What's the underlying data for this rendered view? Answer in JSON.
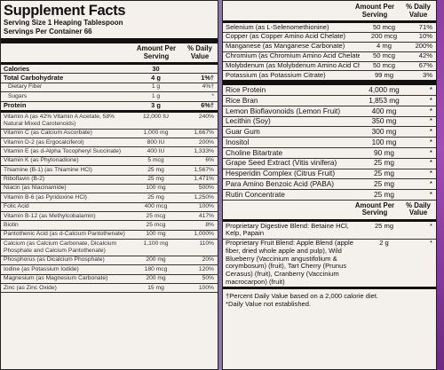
{
  "title": "Supplement Facts",
  "serving_size": "Serving Size 1 Heaping Tablespoon",
  "servings_per_container": "Servings Per Container 66",
  "header": {
    "amount": "Amount Per Serving",
    "dv": "% Daily Value"
  },
  "left_rows": [
    {
      "name": "Calories",
      "amt": "30",
      "dv": "",
      "style": "bold-light"
    },
    {
      "name": "Total Carbohydrate",
      "amt": "4 g",
      "dv": "1%†",
      "style": "bold"
    },
    {
      "name": "Dietary Fiber",
      "amt": "1 g",
      "dv": "4%†",
      "style": "indent"
    },
    {
      "name": "Sugars",
      "amt": "1 g",
      "dv": "*",
      "style": "indent"
    },
    {
      "name": "Protein",
      "amt": "3 g",
      "dv": "6%†",
      "style": "bold-thick"
    },
    {
      "name": "Vitamin A (as 42% Vitamin A Acetate, 58% Natural Mixed Carotenoids)",
      "amt": "12,000 IU",
      "dv": "240%",
      "style": "wrap"
    },
    {
      "name": "Vitamin C (as Calcium Ascorbate)",
      "amt": "1,000 mg",
      "dv": "1,667%",
      "style": ""
    },
    {
      "name": "Vitamin D-2 (as Ergocalciferol)",
      "amt": "800 IU",
      "dv": "200%",
      "style": ""
    },
    {
      "name": "Vitamin E (as d-Alpha Tocopheryl Succinate)",
      "amt": "400 IU",
      "dv": "1,333%",
      "style": ""
    },
    {
      "name": "Vitamin K (as Phytonadione)",
      "amt": "5 mcg",
      "dv": "6%",
      "style": ""
    },
    {
      "name": "Thiamine (B-1) (as Thiamine HCl)",
      "amt": "25 mg",
      "dv": "1,567%",
      "style": ""
    },
    {
      "name": "Riboflavin (B-2)",
      "amt": "25 mg",
      "dv": "1,471%",
      "style": ""
    },
    {
      "name": "Niacin (as Niacinamide)",
      "amt": "100 mg",
      "dv": "500%",
      "style": ""
    },
    {
      "name": "Vitamin B-6 (as Pyridoxine HCl)",
      "amt": "25 mg",
      "dv": "1,250%",
      "style": ""
    },
    {
      "name": "Folic Acid",
      "amt": "400 mcg",
      "dv": "100%",
      "style": ""
    },
    {
      "name": "Vitamin B-12 (as Methylcobalamin)",
      "amt": "25 mcg",
      "dv": "417%",
      "style": ""
    },
    {
      "name": "Biotin",
      "amt": "25 mcg",
      "dv": "8%",
      "style": ""
    },
    {
      "name": "Pantothenic Acid (as d-Calcium Pantothenate)",
      "amt": "100 mg",
      "dv": "1,000%",
      "style": ""
    },
    {
      "name": "Calcium (as Calcium Carbonate, Dicalcium Phosphate and Calcium Pantothenate)",
      "amt": "1,100 mg",
      "dv": "110%",
      "style": "wrap"
    },
    {
      "name": "Phosphorus (as Dicalcium Phosphate)",
      "amt": "200 mg",
      "dv": "20%",
      "style": ""
    },
    {
      "name": "Iodine (as Potassium Iodide)",
      "amt": "180 mcg",
      "dv": "120%",
      "style": ""
    },
    {
      "name": "Magnesium (as Magnesium Carbonate)",
      "amt": "200 mg",
      "dv": "50%",
      "style": ""
    },
    {
      "name": "Zinc (as Zinc Oxide)",
      "amt": "15 mg",
      "dv": "100%",
      "style": ""
    }
  ],
  "right_top": [
    {
      "name": "Selenium (as L-Selenomethionine)",
      "amt": "50 mcg",
      "dv": "71%"
    },
    {
      "name": "Copper (as Copper Amino Acid Chelate)",
      "amt": "200 mcg",
      "dv": "10%"
    },
    {
      "name": "Manganese (as Manganese Carbonate)",
      "amt": "4 mg",
      "dv": "200%"
    },
    {
      "name": "Chromium (as Chromium Amino Acid Chelate)",
      "amt": "50 mcg",
      "dv": "42%"
    },
    {
      "name": "Molybdenum (as Molybdenum Amino Acid Chelate)",
      "amt": "50 mcg",
      "dv": "67%"
    },
    {
      "name": "Potassium (as Potassium Citrate)",
      "amt": "99 mg",
      "dv": "3%"
    }
  ],
  "right_blend": [
    {
      "name": "Rice Protein",
      "amt": "4,000 mg",
      "dv": "*"
    },
    {
      "name": "Rice Bran",
      "amt": "1,853 mg",
      "dv": "*"
    },
    {
      "name": "Lemon Bioflavonoids (Lemon Fruit)",
      "amt": "400 mg",
      "dv": "*"
    },
    {
      "name": "Lecithin (Soy)",
      "amt": "350 mg",
      "dv": "*"
    },
    {
      "name": "Guar Gum",
      "amt": "300 mg",
      "dv": "*"
    },
    {
      "name": "Inositol",
      "amt": "100 mg",
      "dv": "*"
    },
    {
      "name": "Choline Bitartrate",
      "amt": "90 mg",
      "dv": "*"
    },
    {
      "name": "Grape Seed Extract (Vitis vinifera)",
      "amt": "25 mg",
      "dv": "*"
    },
    {
      "name": "Hesperidin Complex (Citrus Fruit)",
      "amt": "25 mg",
      "dv": "*"
    },
    {
      "name": "Para Amino Benzoic Acid (PABA)",
      "amt": "25 mg",
      "dv": "*"
    },
    {
      "name": "Rutin Concentrate",
      "amt": "25 mg",
      "dv": "*"
    }
  ],
  "digestive_blend": {
    "name": "Proprietary Digestive Blend: Betaine HCl, Kelp, Papain",
    "amt": "25 mg",
    "dv": "*"
  },
  "fruit_blend": {
    "name": "Proprietary Fruit Blend: Apple Blend (apple fiber, dried whole apple and pulp), Wild Blueberry (Vaccinium angustifolium & corymbosum) (fruit), Tart Cherry (Prunus Cerasus) (fruit), Cranberry (Vaccinium macrocarpon) (fruit)",
    "amt": "2 g",
    "dv": "*"
  },
  "footnote_1": "†Percent Daily Value based on a 2,000 calorie diet.",
  "footnote_2": "*Daily Value not established."
}
